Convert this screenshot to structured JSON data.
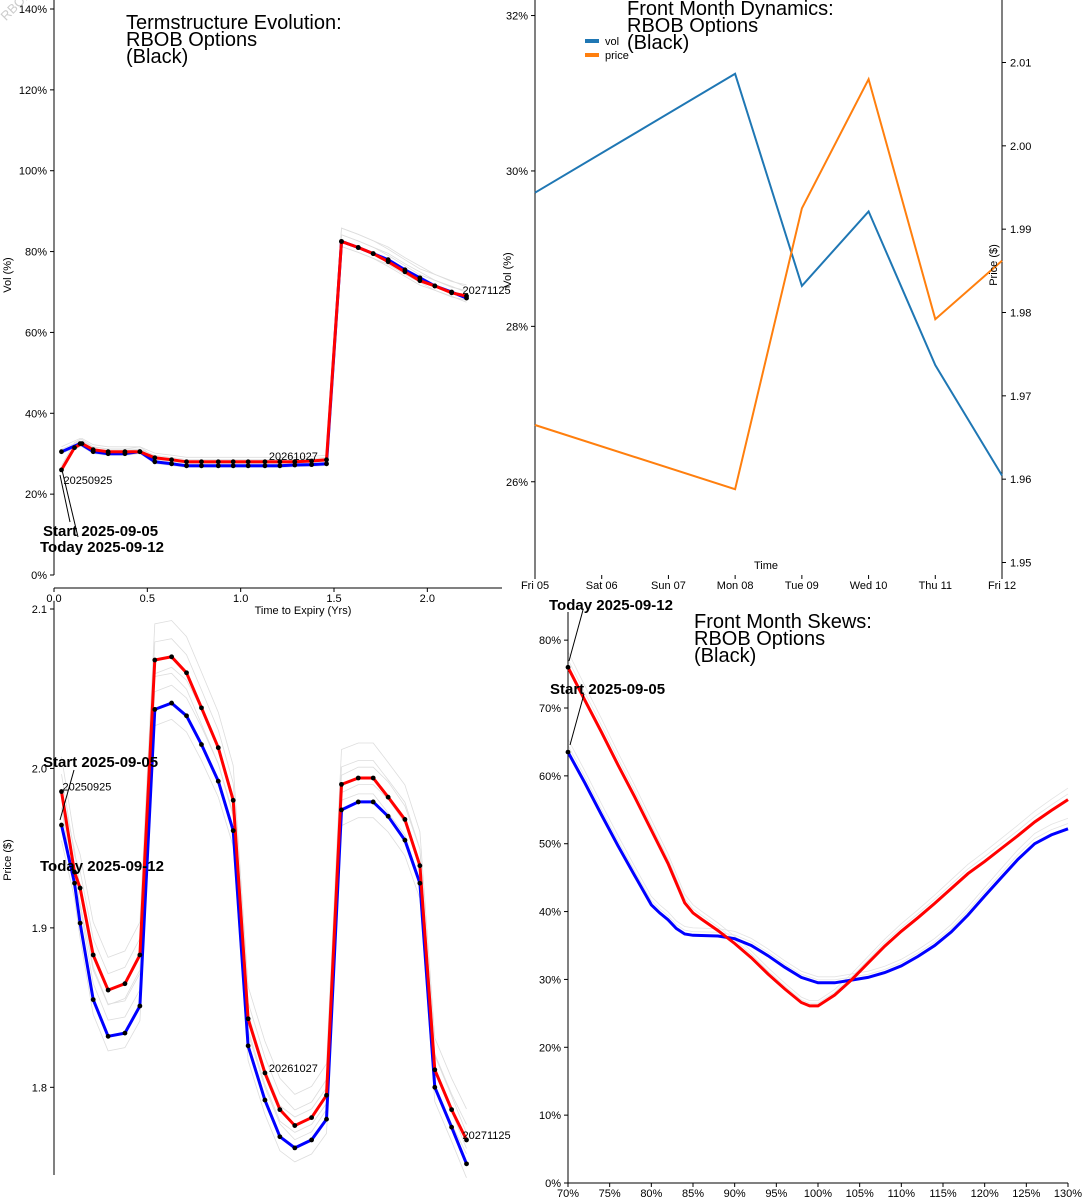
{
  "watermark": "RBOB",
  "chart_data": [
    {
      "id": "termstructure",
      "type": "line",
      "title": [
        "Termstructure Evolution:",
        "RBOB Options",
        "(Black)"
      ],
      "xlabel": "Time to Expiry (Yrs)",
      "ylabel": "Vol (%)",
      "xlim": [
        0,
        2.4
      ],
      "ylim": [
        0,
        140
      ],
      "xticks": [
        0.0,
        0.5,
        1.0,
        1.5,
        2.0
      ],
      "xtick_labels": [
        "0.0",
        "0.5",
        "1.0",
        "1.5",
        "2.0"
      ],
      "yticks": [
        0,
        20,
        40,
        60,
        80,
        100,
        120,
        140
      ],
      "ytick_labels": [
        "0%",
        "20%",
        "40%",
        "60%",
        "80%",
        "100%",
        "120%",
        "140%"
      ],
      "series": [
        {
          "name": "Start 2025-09-05",
          "color": "#0000ff",
          "x": [
            0.04,
            0.14,
            0.21,
            0.29,
            0.38,
            0.46,
            0.54,
            0.63,
            0.71,
            0.79,
            0.88,
            0.96,
            1.04,
            1.13,
            1.21,
            1.29,
            1.38,
            1.46,
            1.54,
            1.63,
            1.71,
            1.79,
            1.88,
            1.96,
            2.04,
            2.13,
            2.21
          ],
          "y": [
            30.5,
            32.5,
            30.5,
            30,
            30,
            30.5,
            28,
            27.5,
            27,
            27,
            27,
            27,
            27,
            27,
            27,
            27.2,
            27.3,
            27.5,
            82.5,
            81,
            79.5,
            78,
            75.5,
            73.5,
            71.5,
            70,
            68.5
          ]
        },
        {
          "name": "Today 2025-09-12",
          "color": "#ff0000",
          "x": [
            0.04,
            0.11,
            0.15,
            0.21,
            0.29,
            0.38,
            0.46,
            0.54,
            0.63,
            0.71,
            0.79,
            0.88,
            0.96,
            1.04,
            1.13,
            1.21,
            1.29,
            1.38,
            1.46,
            1.54,
            1.63,
            1.71,
            1.79,
            1.88,
            1.96,
            2.04,
            2.13,
            2.21
          ],
          "y": [
            26,
            31.5,
            32.5,
            31,
            30.5,
            30.5,
            30.5,
            29,
            28.5,
            28,
            28,
            28,
            28,
            28,
            28,
            28,
            28,
            28.2,
            28.5,
            82.5,
            81,
            79.5,
            77.5,
            75,
            72.8,
            71.5,
            69.8,
            69
          ]
        }
      ],
      "annotations": [
        {
          "text": "20250925",
          "x": 0.04,
          "y": 26
        },
        {
          "text": "20261027",
          "x": 1.13,
          "y": 28
        },
        {
          "text": "20271125",
          "x": 2.21,
          "y": 69
        }
      ],
      "callouts": [
        "Start 2025-09-05",
        "Today 2025-09-12"
      ]
    },
    {
      "id": "dynamics",
      "type": "line",
      "title": [
        "Front Month Dynamics:",
        "RBOB Options",
        "(Black)"
      ],
      "xlabel": "Time",
      "ylabel": "Vol (%)",
      "y2label": "Price ($)",
      "categories": [
        "Fri 05",
        "Sat 06",
        "Sun 07",
        "Mon 08",
        "Tue 09",
        "Wed 10",
        "Thu 11",
        "Fri 12"
      ],
      "ylim": [
        24.8,
        32.2
      ],
      "y2lim": [
        1.9485,
        2.0175
      ],
      "yticks": [
        26,
        28,
        30,
        32
      ],
      "ytick_labels": [
        "26%",
        "28%",
        "30%",
        "32%"
      ],
      "y2ticks": [
        1.95,
        1.96,
        1.97,
        1.98,
        1.99,
        2.0,
        2.01
      ],
      "y2tick_labels": [
        "1.95",
        "1.96",
        "1.97",
        "1.98",
        "1.99",
        "2.00",
        "2.01"
      ],
      "legend": [
        "vol",
        "price"
      ],
      "series": [
        {
          "name": "vol",
          "axis": "left",
          "color": "#1f77b4",
          "x": [
            0,
            3,
            4,
            5,
            6,
            7
          ],
          "y": [
            29.72,
            31.25,
            28.52,
            29.48,
            27.5,
            26.08
          ]
        },
        {
          "name": "price",
          "axis": "right",
          "color": "#ff7f0e",
          "x": [
            0,
            3,
            4,
            5,
            6,
            7
          ],
          "y": [
            1.9665,
            1.9588,
            1.9925,
            2.008,
            1.9792,
            1.9862
          ]
        }
      ]
    },
    {
      "id": "futures",
      "type": "line",
      "ylabel": "Price ($)",
      "xlim": [
        0,
        2.4
      ],
      "ylim": [
        1.745,
        2.1
      ],
      "yticks": [
        1.8,
        1.9,
        2.0,
        2.1
      ],
      "ytick_labels": [
        "1.8",
        "1.9",
        "2.0",
        "2.1"
      ],
      "series": [
        {
          "name": "Start 2025-09-05",
          "color": "#0000ff",
          "x": [
            0.04,
            0.11,
            0.14,
            0.21,
            0.29,
            0.38,
            0.46,
            0.54,
            0.63,
            0.71,
            0.79,
            0.88,
            0.96,
            1.04,
            1.13,
            1.21,
            1.29,
            1.38,
            1.46,
            1.54,
            1.63,
            1.71,
            1.79,
            1.88,
            1.96,
            2.04,
            2.13,
            2.21
          ],
          "y": [
            1.9645,
            1.928,
            1.903,
            1.855,
            1.832,
            1.834,
            1.851,
            2.037,
            2.041,
            2.033,
            2.015,
            1.992,
            1.961,
            1.826,
            1.792,
            1.769,
            1.762,
            1.767,
            1.78,
            1.974,
            1.979,
            1.979,
            1.97,
            1.955,
            1.928,
            1.8,
            1.775,
            1.752
          ]
        },
        {
          "name": "Today 2025-09-12",
          "color": "#ff0000",
          "x": [
            0.04,
            0.11,
            0.14,
            0.21,
            0.29,
            0.38,
            0.46,
            0.54,
            0.63,
            0.71,
            0.79,
            0.88,
            0.96,
            1.04,
            1.13,
            1.21,
            1.29,
            1.38,
            1.46,
            1.54,
            1.63,
            1.71,
            1.79,
            1.88,
            1.96,
            2.04,
            2.13,
            2.21
          ],
          "y": [
            1.9855,
            1.935,
            1.925,
            1.883,
            1.861,
            1.865,
            1.883,
            2.068,
            2.07,
            2.06,
            2.038,
            2.013,
            1.98,
            1.843,
            1.809,
            1.786,
            1.776,
            1.781,
            1.795,
            1.99,
            1.994,
            1.994,
            1.982,
            1.968,
            1.939,
            1.811,
            1.786,
            1.767
          ]
        }
      ],
      "annotations": [
        {
          "text": "20250925",
          "x": 0.04,
          "y": 1.9855
        },
        {
          "text": "20261027",
          "x": 1.13,
          "y": 1.809
        },
        {
          "text": "20271125",
          "x": 2.21,
          "y": 1.767
        }
      ],
      "callouts": [
        "Start 2025-09-05",
        "Today 2025-09-12"
      ]
    },
    {
      "id": "skews",
      "type": "line",
      "title": [
        "Front Month Skews:",
        "RBOB Options",
        "(Black)"
      ],
      "xlim": [
        70,
        130
      ],
      "ylim": [
        0,
        84
      ],
      "xticks": [
        70,
        75,
        80,
        85,
        90,
        95,
        100,
        105,
        110,
        115,
        120,
        125,
        130
      ],
      "xtick_labels": [
        "70%",
        "75%",
        "80%",
        "85%",
        "90%",
        "95%",
        "100%",
        "105%",
        "110%",
        "115%",
        "120%",
        "125%",
        "130%"
      ],
      "yticks": [
        0,
        10,
        20,
        30,
        40,
        50,
        60,
        70,
        80
      ],
      "ytick_labels": [
        "0%",
        "10%",
        "20%",
        "30%",
        "40%",
        "50%",
        "60%",
        "70%",
        "80%"
      ],
      "series": [
        {
          "name": "Start 2025-09-05",
          "color": "#0000ff",
          "x": [
            70,
            72,
            74,
            76,
            78,
            80,
            81,
            82,
            83,
            84,
            85,
            88,
            90,
            92,
            94,
            96,
            98,
            100,
            102,
            104,
            106,
            108,
            110,
            112,
            114,
            116,
            118,
            120,
            122,
            124,
            126,
            128,
            130
          ],
          "y": [
            63.5,
            59,
            54.3,
            49.7,
            45.3,
            41,
            39.8,
            38.8,
            37.5,
            36.7,
            36.5,
            36.4,
            36,
            35,
            33.5,
            31.8,
            30.3,
            29.5,
            29.5,
            29.9,
            30.3,
            31,
            32,
            33.4,
            35,
            37,
            39.5,
            42.3,
            45,
            47.7,
            50,
            51.3,
            52.2
          ]
        },
        {
          "name": "Today 2025-09-12",
          "color": "#ff0000",
          "x": [
            70,
            72,
            74,
            76,
            78,
            80,
            82,
            84,
            85,
            86,
            88,
            90,
            92,
            94,
            96,
            98,
            99,
            100,
            102,
            104,
            106,
            108,
            110,
            112,
            114,
            116,
            118,
            120,
            122,
            124,
            126,
            128,
            130
          ],
          "y": [
            76,
            71.2,
            66.5,
            61.6,
            56.9,
            52,
            47.1,
            41.3,
            39.8,
            38.9,
            37.2,
            35.3,
            33.2,
            30.8,
            28.6,
            26.6,
            26.1,
            26.1,
            27.7,
            29.9,
            32.4,
            34.9,
            37.1,
            39.1,
            41.2,
            43.4,
            45.6,
            47.4,
            49.3,
            51.2,
            53.2,
            54.9,
            56.5
          ]
        }
      ],
      "callouts": [
        "Start 2025-09-05",
        "Today 2025-09-12"
      ]
    }
  ]
}
